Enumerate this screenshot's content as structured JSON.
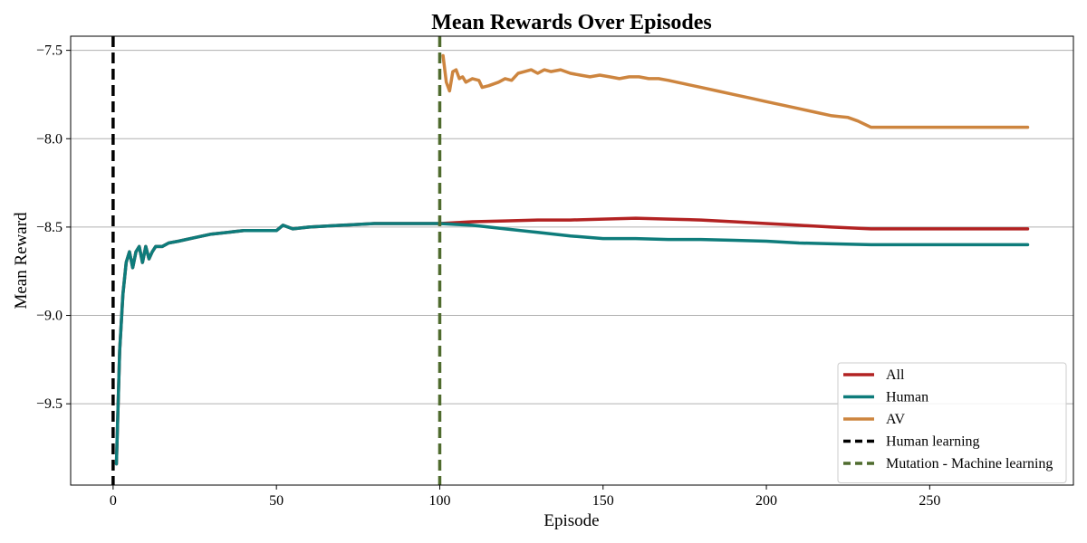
{
  "chart_data": {
    "type": "line",
    "title": "Mean Rewards Over Episodes",
    "xlabel": "Episode",
    "ylabel": "Mean Reward",
    "xlim": [
      -13,
      294
    ],
    "ylim": [
      -9.96,
      -7.42
    ],
    "x_ticks": [
      0,
      50,
      100,
      150,
      200,
      250
    ],
    "x_tick_labels": [
      "0",
      "50",
      "100",
      "150",
      "200",
      "250"
    ],
    "y_ticks": [
      -7.5,
      -8.0,
      -8.5,
      -9.0,
      -9.5
    ],
    "y_tick_labels": [
      "−7.5",
      "−8.0",
      "−8.5",
      "−9.0",
      "−9.5"
    ],
    "grid": "y-axis only",
    "legend_position": "lower right",
    "series": [
      {
        "name": "All",
        "color": "#b22222",
        "style": "solid",
        "x": [
          1,
          2,
          3,
          4,
          5,
          6,
          7,
          8,
          9,
          10,
          11,
          12,
          13,
          15,
          17,
          20,
          25,
          30,
          40,
          50,
          52,
          55,
          60,
          70,
          80,
          90,
          95,
          100,
          105,
          110,
          120,
          130,
          140,
          150,
          160,
          170,
          180,
          190,
          200,
          210,
          220,
          232,
          250,
          280
        ],
        "y": [
          -9.84,
          -9.2,
          -8.88,
          -8.7,
          -8.64,
          -8.73,
          -8.64,
          -8.61,
          -8.7,
          -8.61,
          -8.68,
          -8.64,
          -8.61,
          -8.61,
          -8.59,
          -8.58,
          -8.56,
          -8.54,
          -8.52,
          -8.52,
          -8.49,
          -8.51,
          -8.5,
          -8.49,
          -8.48,
          -8.48,
          -8.48,
          -8.48,
          -8.475,
          -8.47,
          -8.465,
          -8.46,
          -8.46,
          -8.455,
          -8.45,
          -8.455,
          -8.46,
          -8.47,
          -8.48,
          -8.49,
          -8.5,
          -8.51,
          -8.51,
          -8.51
        ]
      },
      {
        "name": "Human",
        "color": "#0e7c7b",
        "style": "solid",
        "x": [
          1,
          2,
          3,
          4,
          5,
          6,
          7,
          8,
          9,
          10,
          11,
          12,
          13,
          15,
          17,
          20,
          25,
          30,
          40,
          50,
          52,
          55,
          60,
          70,
          80,
          90,
          95,
          100,
          105,
          110,
          120,
          130,
          140,
          150,
          160,
          170,
          180,
          190,
          200,
          210,
          220,
          232,
          250,
          280
        ],
        "y": [
          -9.84,
          -9.2,
          -8.88,
          -8.7,
          -8.64,
          -8.73,
          -8.64,
          -8.61,
          -8.7,
          -8.61,
          -8.68,
          -8.64,
          -8.61,
          -8.61,
          -8.59,
          -8.58,
          -8.56,
          -8.54,
          -8.52,
          -8.52,
          -8.49,
          -8.51,
          -8.5,
          -8.49,
          -8.48,
          -8.48,
          -8.48,
          -8.48,
          -8.485,
          -8.49,
          -8.51,
          -8.53,
          -8.55,
          -8.565,
          -8.565,
          -8.57,
          -8.57,
          -8.575,
          -8.58,
          -8.59,
          -8.595,
          -8.6,
          -8.6,
          -8.6
        ]
      },
      {
        "name": "AV",
        "color": "#cd853f",
        "style": "solid",
        "x": [
          101,
          102,
          103,
          104,
          105,
          106,
          107,
          108,
          110,
          112,
          113,
          115,
          118,
          120,
          122,
          124,
          126,
          128,
          130,
          132,
          134,
          137,
          140,
          143,
          146,
          149,
          152,
          155,
          158,
          161,
          164,
          167,
          170,
          175,
          180,
          185,
          190,
          195,
          200,
          205,
          210,
          215,
          220,
          225,
          228,
          232,
          250,
          280
        ],
        "y": [
          -7.53,
          -7.68,
          -7.73,
          -7.62,
          -7.61,
          -7.66,
          -7.65,
          -7.68,
          -7.66,
          -7.67,
          -7.71,
          -7.7,
          -7.68,
          -7.66,
          -7.67,
          -7.63,
          -7.62,
          -7.61,
          -7.63,
          -7.61,
          -7.62,
          -7.61,
          -7.63,
          -7.64,
          -7.65,
          -7.64,
          -7.65,
          -7.66,
          -7.65,
          -7.65,
          -7.66,
          -7.66,
          -7.67,
          -7.69,
          -7.71,
          -7.73,
          -7.75,
          -7.77,
          -7.79,
          -7.81,
          -7.83,
          -7.85,
          -7.87,
          -7.88,
          -7.9,
          -7.935,
          -7.935,
          -7.935
        ]
      }
    ],
    "vlines": [
      {
        "name": "Human learning",
        "x": 0,
        "color": "#000000",
        "style": "dashed"
      },
      {
        "name": "Mutation - Machine learning",
        "x": 100,
        "color": "#4f6b2e",
        "style": "dashed"
      }
    ]
  }
}
